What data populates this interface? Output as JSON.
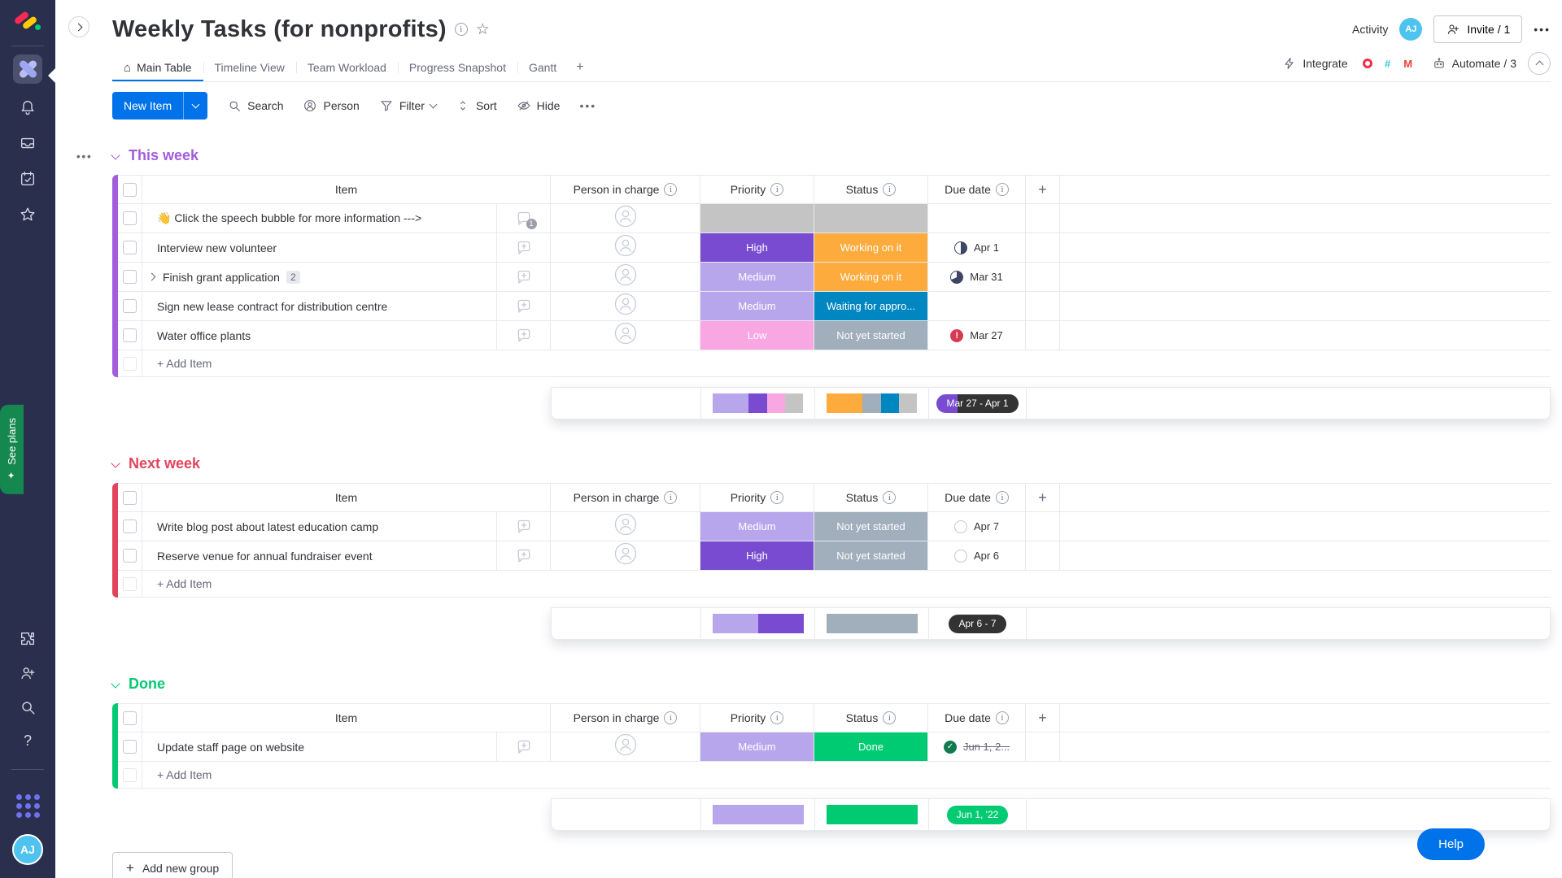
{
  "colors": {
    "accent_blue": "#0073ea",
    "sidebar_bg": "#292f4c",
    "group_purple": "#a25ddc",
    "group_red": "#e2445c",
    "group_green": "#00ca72",
    "priority_high": "#784bd1",
    "priority_medium": "#b8a6ec",
    "priority_low": "#f9a7e3",
    "status_working": "#fdab3d",
    "status_waiting": "#0086c0",
    "status_not_started": "#a1aebc",
    "status_done": "#00ca72",
    "empty_cell": "#c4c4c4"
  },
  "sidebar": {
    "see_plans": "See plans",
    "avatar_initials": "AJ"
  },
  "header": {
    "title": "Weekly Tasks (for nonprofits)",
    "activity_label": "Activity",
    "user_initials": "AJ",
    "invite_label": "Invite / 1",
    "tabs": [
      {
        "label": "Main Table"
      },
      {
        "label": "Timeline View"
      },
      {
        "label": "Team Workload"
      },
      {
        "label": "Progress Snapshot"
      },
      {
        "label": "Gantt"
      }
    ],
    "integrate_label": "Integrate",
    "automate_label": "Automate / 3"
  },
  "toolbar": {
    "new_item": "New Item",
    "search": "Search",
    "person": "Person",
    "filter": "Filter",
    "sort": "Sort",
    "hide": "Hide"
  },
  "columns": {
    "item": "Item",
    "person": "Person in charge",
    "priority": "Priority",
    "status": "Status",
    "due": "Due date"
  },
  "groups": [
    {
      "name": "This week",
      "color": "#a25ddc",
      "add_item": "+ Add Item",
      "items": [
        {
          "name": "👋 Click the speech bubble for more information --->",
          "chat_badge": "1",
          "priority": "",
          "priority_color": "#c4c4c4",
          "status": "",
          "status_color": "#c4c4c4",
          "due": "",
          "due_icon": "none",
          "strike": false
        },
        {
          "name": "Interview new volunteer",
          "priority": "High",
          "priority_color": "#784bd1",
          "status": "Working on it",
          "status_color": "#fdab3d",
          "due": "Apr 1",
          "due_icon": "half",
          "strike": false
        },
        {
          "name": "Finish grant application",
          "subitems_badge": "2",
          "priority": "Medium",
          "priority_color": "#b8a6ec",
          "status": "Working on it",
          "status_color": "#fdab3d",
          "due": "Mar 31",
          "due_icon": "most",
          "strike": false
        },
        {
          "name": "Sign new lease contract for distribution centre",
          "priority": "Medium",
          "priority_color": "#b8a6ec",
          "status": "Waiting for appro...",
          "status_color": "#0086c0",
          "due": "",
          "due_icon": "none",
          "strike": false
        },
        {
          "name": "Water office plants",
          "priority": "Low",
          "priority_color": "#f9a7e3",
          "status": "Not yet started",
          "status_color": "#a1aebc",
          "due": "Mar 27",
          "due_icon": "overdue",
          "strike": false
        }
      ],
      "summary": {
        "priority": [
          {
            "color": "#b8a6ec",
            "pct": 40
          },
          {
            "color": "#784bd1",
            "pct": 20
          },
          {
            "color": "#f9a7e3",
            "pct": 20
          },
          {
            "color": "#c4c4c4",
            "pct": 20
          }
        ],
        "status": [
          {
            "color": "#fdab3d",
            "pct": 40
          },
          {
            "color": "#a1aebc",
            "pct": 20
          },
          {
            "color": "#0086c0",
            "pct": 20
          },
          {
            "color": "#c4c4c4",
            "pct": 20
          }
        ],
        "pill": {
          "text": "Mar 27 - Apr 1",
          "bg": "#333333",
          "accent": "#784bd1"
        }
      }
    },
    {
      "name": "Next week",
      "color": "#e2445c",
      "add_item": "+ Add Item",
      "items": [
        {
          "name": "Write blog post about latest education camp",
          "priority": "Medium",
          "priority_color": "#b8a6ec",
          "status": "Not yet started",
          "status_color": "#a1aebc",
          "due": "Apr 7",
          "due_icon": "empty",
          "strike": false
        },
        {
          "name": "Reserve venue for annual fundraiser event",
          "priority": "High",
          "priority_color": "#784bd1",
          "status": "Not yet started",
          "status_color": "#a1aebc",
          "due": "Apr 6",
          "due_icon": "empty",
          "strike": false
        }
      ],
      "summary": {
        "priority": [
          {
            "color": "#b8a6ec",
            "pct": 50
          },
          {
            "color": "#784bd1",
            "pct": 50
          }
        ],
        "status": [
          {
            "color": "#a1aebc",
            "pct": 100
          }
        ],
        "pill": {
          "text": "Apr 6 - 7",
          "bg": "#333333"
        }
      }
    },
    {
      "name": "Done",
      "color": "#00ca72",
      "add_item": "+ Add Item",
      "items": [
        {
          "name": "Update staff page on website",
          "priority": "Medium",
          "priority_color": "#b8a6ec",
          "status": "Done",
          "status_color": "#00ca72",
          "due": "Jun 1, 2...",
          "due_icon": "done",
          "strike": true
        }
      ],
      "summary": {
        "priority": [
          {
            "color": "#b8a6ec",
            "pct": 100
          }
        ],
        "status": [
          {
            "color": "#00ca72",
            "pct": 100
          }
        ],
        "pill": {
          "text": "Jun 1, '22",
          "bg": "#00ca72"
        }
      }
    }
  ],
  "footer": {
    "add_new_group": "Add new group",
    "help": "Help"
  }
}
